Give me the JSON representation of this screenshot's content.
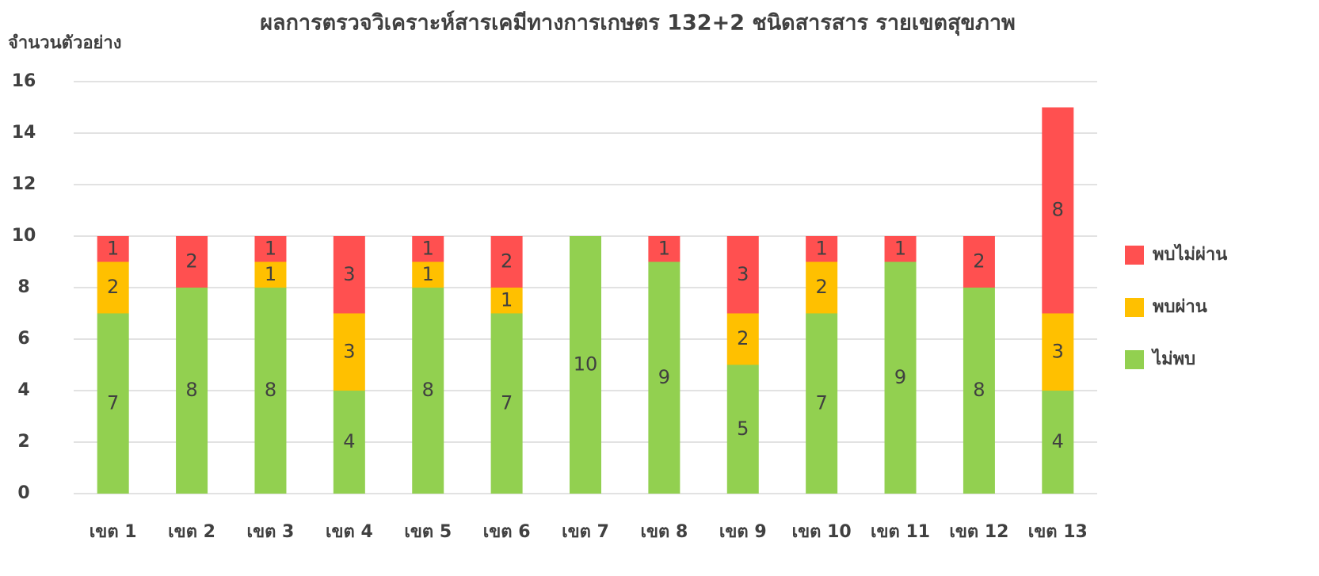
{
  "chart_data": {
    "type": "stacked_bar",
    "title": "ผลการตรวจวิเคราะห์สารเคมีทางการเกษตร 132+2 ชนิดสารสาร รายเขตสุขภาพ",
    "y_label": "จำนวนตัวอย่าง",
    "categories": [
      "เขต 1",
      "เขต 2",
      "เขต 3",
      "เขต 4",
      "เขต 5",
      "เขต 6",
      "เขต 7",
      "เขต 8",
      "เขต 9",
      "เขต 10",
      "เขต 11",
      "เขต 12",
      "เขต 13"
    ],
    "series": [
      {
        "name": "ไม่พบ",
        "color": "#92d050",
        "values": [
          7,
          8,
          8,
          4,
          8,
          7,
          10,
          9,
          5,
          7,
          9,
          8,
          4
        ]
      },
      {
        "name": "พบผ่าน",
        "color": "#ffc000",
        "values": [
          2,
          0,
          1,
          3,
          1,
          1,
          0,
          0,
          2,
          2,
          0,
          0,
          3
        ]
      },
      {
        "name": "พบไม่ผ่าน",
        "color": "#ff5050",
        "values": [
          1,
          2,
          1,
          3,
          1,
          2,
          0,
          1,
          3,
          1,
          1,
          2,
          8
        ]
      }
    ],
    "ylim": [
      0,
      16
    ],
    "yticks": [
      0,
      2,
      4,
      6,
      8,
      10,
      12,
      14,
      16
    ],
    "grid": true,
    "legend": "right"
  }
}
